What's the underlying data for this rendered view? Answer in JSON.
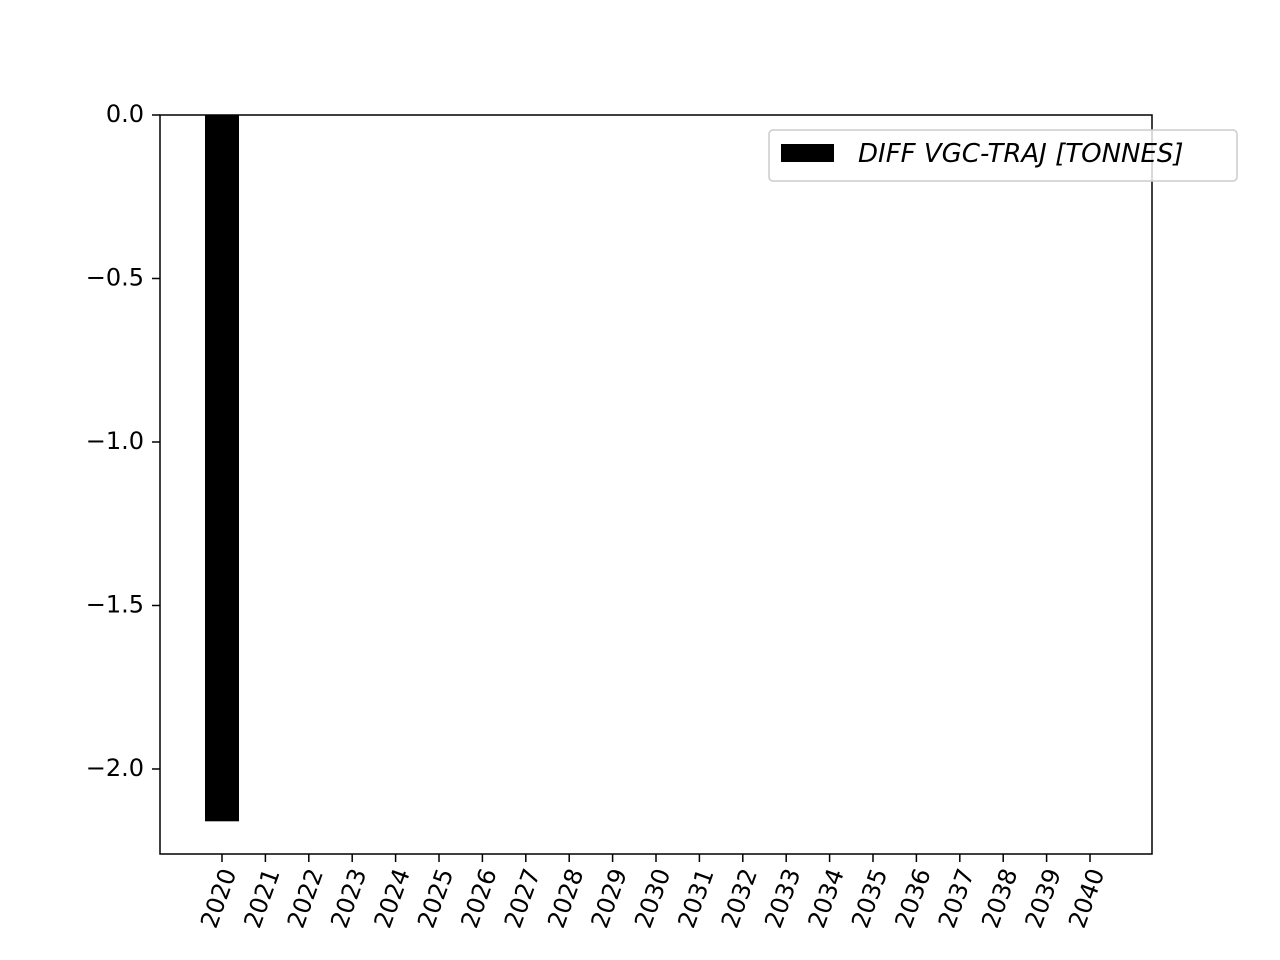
{
  "chart_data": {
    "type": "bar",
    "categories": [
      "2020",
      "2021",
      "2022",
      "2023",
      "2024",
      "2025",
      "2026",
      "2027",
      "2028",
      "2029",
      "2030",
      "2031",
      "2032",
      "2033",
      "2034",
      "2035",
      "2036",
      "2037",
      "2038",
      "2039",
      "2040"
    ],
    "series": [
      {
        "name": "DIFF VGC-TRAJ [TONNES]",
        "values": [
          -2.16,
          0,
          0,
          0,
          0,
          0,
          0,
          0,
          0,
          0,
          0,
          0,
          0,
          0,
          0,
          0,
          0,
          0,
          0,
          0,
          0
        ]
      }
    ],
    "ylim": [
      -2.26,
      0.0
    ],
    "yticks": [
      0.0,
      -0.5,
      -1.0,
      -1.5,
      -2.0
    ],
    "ytick_labels": [
      "0.0",
      "−0.5",
      "−1.0",
      "−1.5",
      "−2.0"
    ],
    "bar_color": "#000000",
    "grid": false,
    "legend_position": "top-right",
    "title": "",
    "xlabel": "",
    "ylabel": ""
  }
}
